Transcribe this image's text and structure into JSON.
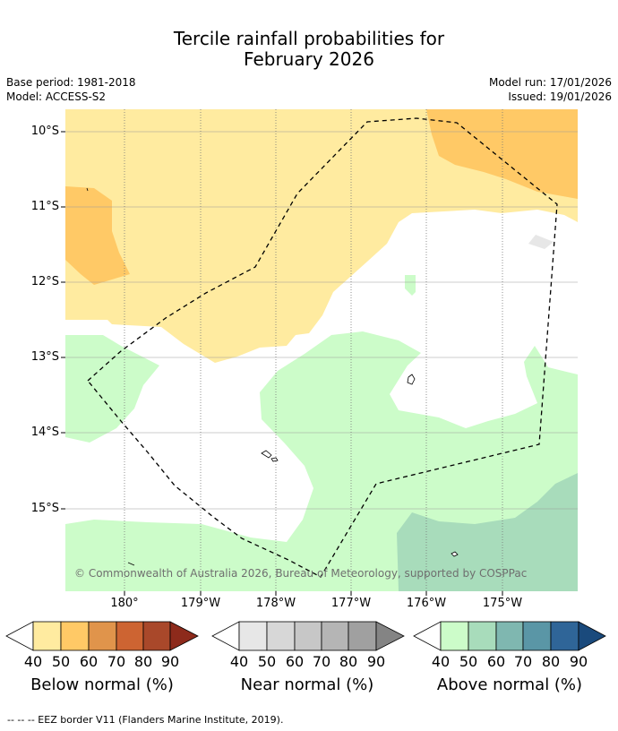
{
  "title_line1": "Tercile rainfall probabilities for",
  "title_line2": "February 2026",
  "base_period": "Base period: 1981-2018",
  "model": "Model: ACCESS-S2",
  "model_run": "Model run: 17/01/2026",
  "issued": "Issued: 19/01/2026",
  "copyright": "© Commonwealth of Australia 2026, Bureau of Meteorology, supported by COSPPac",
  "lat_labels": [
    "10°S",
    "11°S",
    "12°S",
    "13°S",
    "14°S",
    "15°S"
  ],
  "lon_labels": [
    "180°",
    "179°W",
    "178°W",
    "177°W",
    "176°W",
    "175°W"
  ],
  "colorbars": {
    "below": {
      "label": "Below normal (%)",
      "ticks": [
        "40",
        "50",
        "60",
        "70",
        "80",
        "90"
      ],
      "colors": [
        "#ffeba0",
        "#ffc966",
        "#e0944b",
        "#cd6432",
        "#a9482a",
        "#8d2a1b"
      ]
    },
    "near": {
      "label": "Near normal (%)",
      "ticks": [
        "40",
        "50",
        "60",
        "70",
        "80",
        "90"
      ],
      "colors": [
        "#e7e7e7",
        "#d7d7d7",
        "#c7c7c7",
        "#b5b5b5",
        "#a0a0a0",
        "#848484"
      ]
    },
    "above": {
      "label": "Above normal (%)",
      "ticks": [
        "40",
        "50",
        "60",
        "70",
        "80",
        "90"
      ],
      "colors": [
        "#ccfcc9",
        "#a8dcbb",
        "#7fb7b0",
        "#5a96a6",
        "#2f6598",
        "#1a4a7c"
      ]
    }
  },
  "footer": "--  --  -- EEZ border V11 (Flanders Marine Institute, 2019)."
}
